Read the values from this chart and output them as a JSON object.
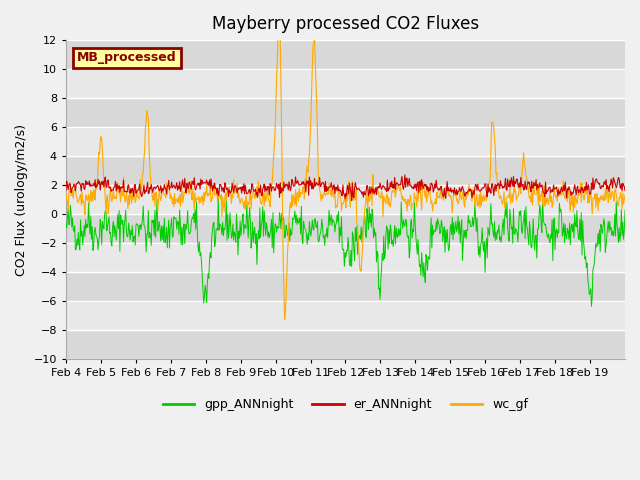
{
  "title": "Mayberry processed CO2 Fluxes",
  "ylabel": "CO2 Flux (urology/m2/s)",
  "ylim": [
    -10,
    12
  ],
  "yticks": [
    -10,
    -8,
    -6,
    -4,
    -2,
    0,
    2,
    4,
    6,
    8,
    10,
    12
  ],
  "xlabel_dates": [
    "Feb 4",
    "Feb 5",
    "Feb 6",
    "Feb 7",
    "Feb 8",
    "Feb 9",
    "Feb 10",
    "Feb 11",
    "Feb 12",
    "Feb 13",
    "Feb 14",
    "Feb 15",
    "Feb 16",
    "Feb 17",
    "Feb 18",
    "Feb 19"
  ],
  "colors": {
    "gpp": "#00cc00",
    "er": "#cc0000",
    "wc": "#ffaa00",
    "box_bg": "#ffffa0",
    "box_border": "#8b0000"
  },
  "box_label": "MB_processed",
  "legend_labels": [
    "gpp_ANNnight",
    "er_ANNnight",
    "wc_gf"
  ],
  "n_points_per_day": 48,
  "n_days": 16,
  "background_color": "#f0f0f0",
  "axes_bg": "#e8e8e8"
}
